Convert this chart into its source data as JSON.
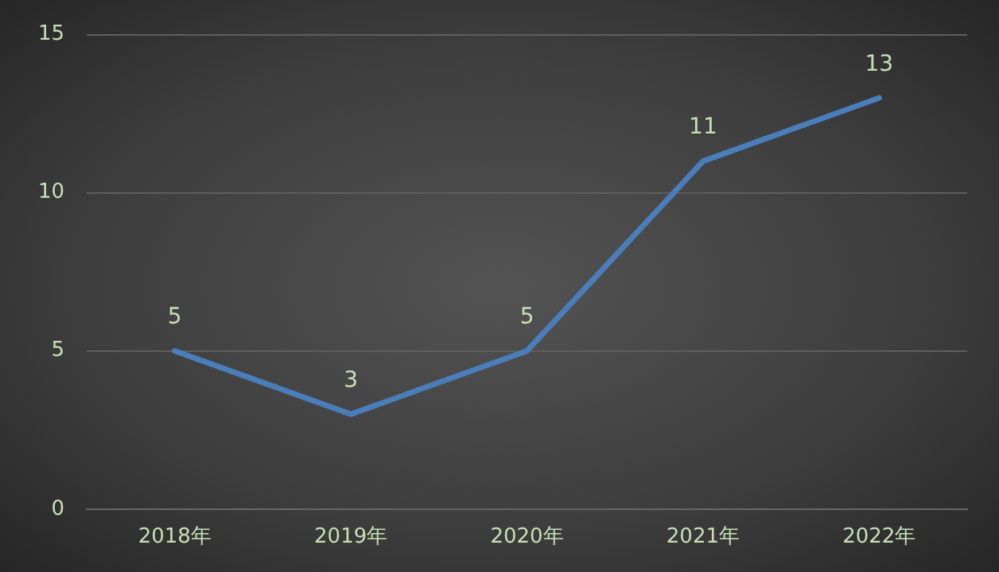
{
  "chart_data": {
    "type": "line",
    "categories": [
      "2018年",
      "2019年",
      "2020年",
      "2021年",
      "2022年"
    ],
    "series": [
      {
        "color": "#4a7ebb",
        "values": [
          5,
          3,
          5,
          11,
          13
        ]
      }
    ],
    "ylim": [
      0,
      15
    ],
    "yticks": [
      0,
      5,
      10,
      15
    ],
    "grid": "y",
    "data_labels": true,
    "legend": false,
    "marker": "none",
    "line_style": "solid"
  }
}
